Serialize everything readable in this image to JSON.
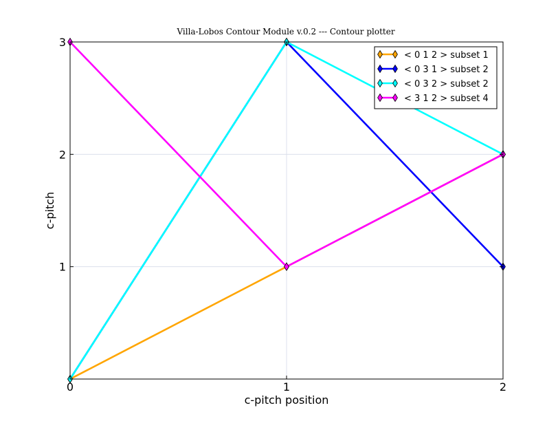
{
  "chart_data": {
    "type": "line",
    "title": "Villa-Lobos Contour Module v.0.2 --- Contour plotter",
    "xlabel": "c-pitch position",
    "ylabel": "c-pitch",
    "xlim": [
      0,
      2
    ],
    "ylim": [
      0,
      3
    ],
    "x_ticks": [
      "0",
      "1",
      "2"
    ],
    "y_ticks": [
      "1",
      "2",
      "3"
    ],
    "grid": true,
    "legend_position": "top-right",
    "x": [
      0,
      1,
      2
    ],
    "series": [
      {
        "name": "< 0 1 2 > subset 1",
        "values": [
          0,
          1,
          2
        ],
        "color": "#ffa500"
      },
      {
        "name": "< 0 3 1 > subset 2",
        "values": [
          0,
          3,
          1
        ],
        "color": "#0000ff"
      },
      {
        "name": "< 0 3 2 > subset 2",
        "values": [
          0,
          3,
          2
        ],
        "color": "#00ffff"
      },
      {
        "name": "< 3 1 2 > subset 4",
        "values": [
          3,
          1,
          2
        ],
        "color": "#ff00ff"
      }
    ],
    "marker": "diamond"
  }
}
